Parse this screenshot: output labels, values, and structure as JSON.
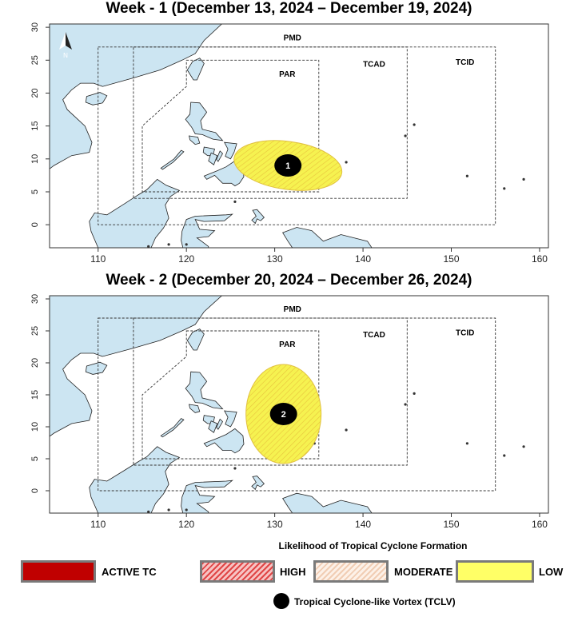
{
  "titles": {
    "week1": "Week - 1 (December 13, 2024 – December 19, 2024)",
    "week2": "Week - 2 (December 20, 2024 – December 26, 2024)"
  },
  "axes": {
    "x_ticks": [
      "110",
      "120",
      "130",
      "140",
      "150",
      "160"
    ],
    "y_ticks": [
      "0",
      "5",
      "10",
      "15",
      "20",
      "25",
      "30"
    ]
  },
  "region_labels": {
    "pmd": "PMD",
    "par": "PAR",
    "tcad": "TCAD",
    "tcid": "TCID"
  },
  "north_arrow": {
    "label": "N",
    "icon": "north-arrow-icon"
  },
  "maps": [
    {
      "id": "week1",
      "tclv": {
        "label": "1",
        "lon": 131.5,
        "lat": 9.0
      },
      "likelihood_area": {
        "level": "LOW",
        "center_lon": 131.5,
        "center_lat": 9.0
      }
    },
    {
      "id": "week2",
      "tclv": {
        "label": "2",
        "lon": 131.0,
        "lat": 12.0
      },
      "likelihood_area": {
        "level": "LOW",
        "center_lon": 131.0,
        "center_lat": 12.0
      }
    }
  ],
  "legend": {
    "title": "Likelihood of Tropical Cyclone Formation",
    "items": [
      {
        "label": "ACTIVE TC",
        "color": "#c00000"
      },
      {
        "label": "HIGH",
        "color": "#f08080"
      },
      {
        "label": "MODERATE",
        "color": "#fbe3d0"
      },
      {
        "label": "LOW",
        "color": "#ffff66"
      }
    ],
    "tclv_label": "Tropical Cyclone-like Vortex (TCLV)"
  },
  "colors": {
    "land": "#cce5f2",
    "low": "#f6f250"
  }
}
